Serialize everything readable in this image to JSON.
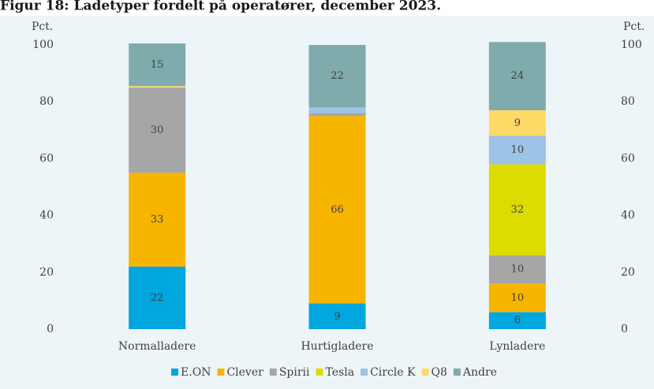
{
  "chart_data": {
    "type": "stacked_bar",
    "title": "Figur 18: Ladetyper fordelt på operatører, december 2023.",
    "ylabel": "Pct.",
    "y2label": "Pct.",
    "categories": [
      "Normalladere",
      "Hurtigladere",
      "Lynladere"
    ],
    "series": [
      {
        "name": "E.ON",
        "color": "#00a6de",
        "values": [
          22,
          9,
          6
        ]
      },
      {
        "name": "Clever",
        "color": "#f7b500",
        "values": [
          33,
          66,
          10
        ]
      },
      {
        "name": "Spirii",
        "color": "#a6a6a6",
        "values": [
          30,
          1,
          10
        ]
      },
      {
        "name": "Tesla",
        "color": "#dcdc00",
        "values": [
          0,
          0,
          32
        ]
      },
      {
        "name": "Circle K",
        "color": "#9dc3e6",
        "values": [
          0,
          2,
          10
        ]
      },
      {
        "name": "Q8",
        "color": "#ffd966",
        "values": [
          0.5,
          0,
          9
        ]
      },
      {
        "name": "Andre",
        "color": "#7fabad",
        "values": [
          15,
          22,
          24
        ]
      }
    ],
    "ylim": [
      0,
      100
    ],
    "yticks": [
      0,
      20,
      40,
      60,
      80,
      100
    ],
    "y2lim": [
      0,
      100
    ],
    "y2ticks": [
      0,
      20,
      40,
      60,
      80,
      100
    ],
    "legend": "bottom"
  }
}
